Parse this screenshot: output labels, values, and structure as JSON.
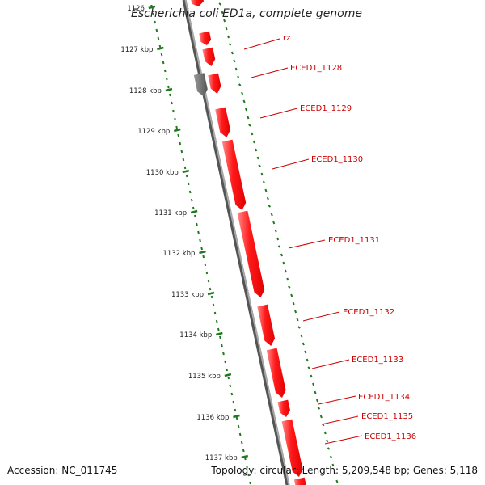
{
  "title": "Escherichia coli ED1a, complete genome",
  "accession_text": "Accession: NC_011745",
  "summary_text": "Topology: circular; Length: 5,209,548 bp; Genes: 5,118",
  "ruler": {
    "unit": "kbp",
    "tick_labels": [
      "1126",
      "1127 kbp",
      "1128 kbp",
      "1129 kbp",
      "1130 kbp",
      "1131 kbp",
      "1132 kbp",
      "1133 kbp",
      "1134 kbp",
      "1135 kbp",
      "1136 kbp",
      "1137 kbp"
    ]
  },
  "colors": {
    "gene": "#ff1a1a",
    "gene_highlight": "#ff8a8a",
    "rna_or_other": "#666666",
    "backbone": "#888888",
    "ruler_ticks": "#1f7a1f",
    "gene_label": "#cc0000"
  },
  "genes": [
    {
      "label": "rz",
      "color": "gene"
    },
    {
      "label": "ECED1_1128",
      "color": "gene"
    },
    {
      "label": "ECED1_1129",
      "color": "gene"
    },
    {
      "label": "ECED1_1130",
      "color": "gene"
    },
    {
      "label": "ECED1_1131",
      "color": "gene"
    },
    {
      "label": "ECED1_1132",
      "color": "gene"
    },
    {
      "label": "ECED1_1133",
      "color": "gene"
    },
    {
      "label": "ECED1_1134",
      "color": "gene"
    },
    {
      "label": "ECED1_1135",
      "color": "gene"
    },
    {
      "label": "ECED1_1136",
      "color": "gene"
    }
  ]
}
